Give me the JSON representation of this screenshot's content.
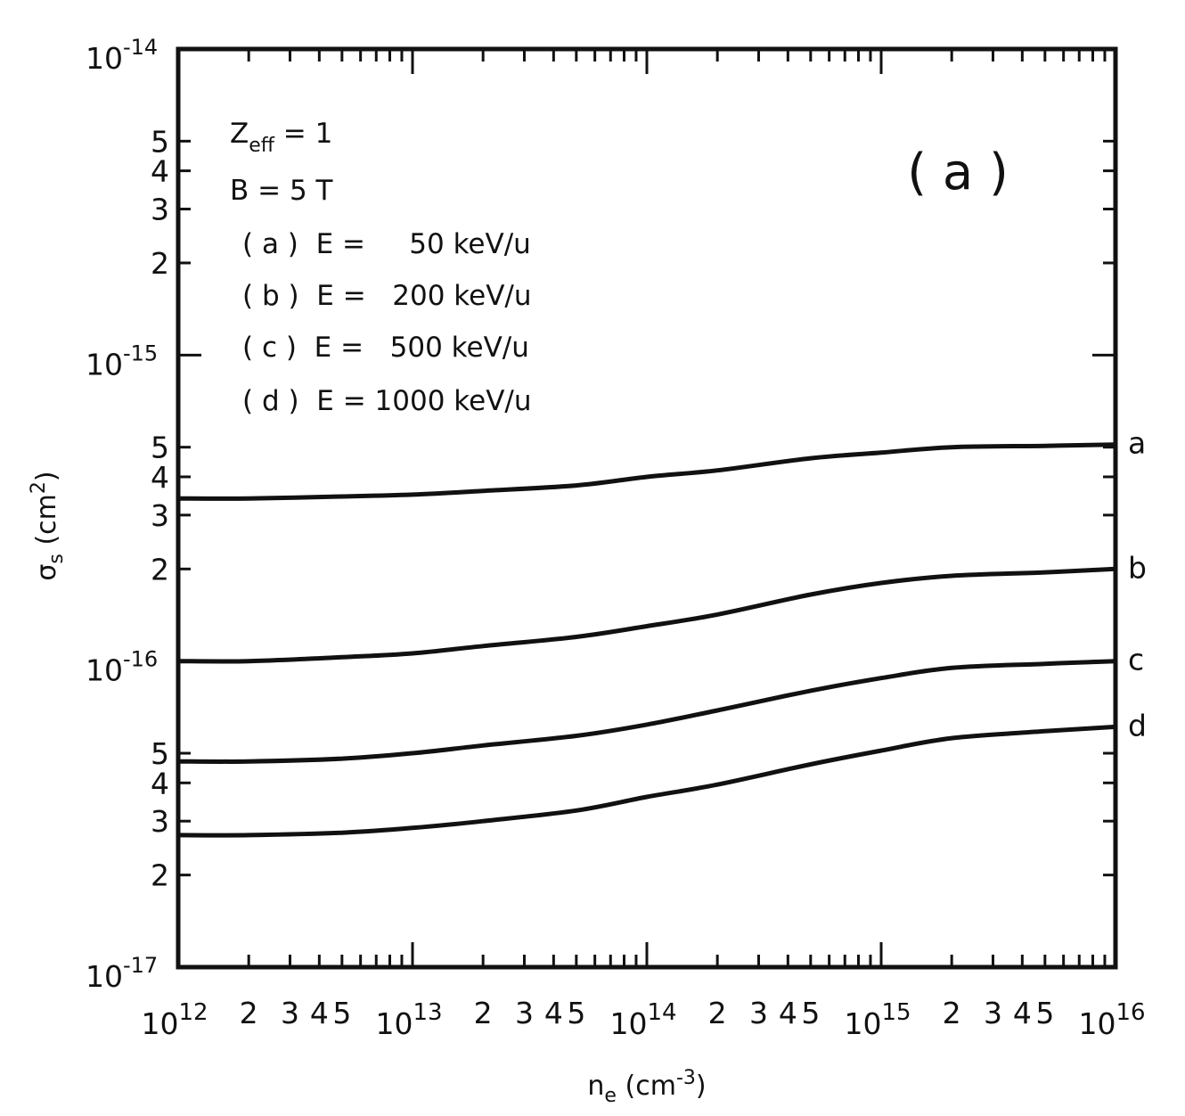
{
  "chart_data": {
    "type": "line",
    "panel_label": "( a )",
    "annotations": [
      "Z",
      "eff",
      " = 1",
      "B = 5 T",
      "( a )  E =     50 keV/u",
      "( b )  E =   200 keV/u",
      "( c )  E =   500 keV/u",
      "( d )  E = 1000 keV/u"
    ],
    "xlabel": {
      "base": "n",
      "sub": "e",
      "unit": " (cm",
      "sup": "-3",
      "close": ")"
    },
    "ylabel": {
      "base": "σ",
      "sub": "s",
      "unit": " (cm",
      "sup": "2",
      "close": ")"
    },
    "x_scale": "log",
    "y_scale": "log",
    "xlim": [
      1000000000000.0,
      1e+16
    ],
    "ylim": [
      1e-17,
      1e-14
    ],
    "x_major_ticks": [
      {
        "base": "10",
        "exp": "12"
      },
      {
        "base": "10",
        "exp": "13"
      },
      {
        "base": "10",
        "exp": "14"
      },
      {
        "base": "10",
        "exp": "15"
      },
      {
        "base": "10",
        "exp": "16"
      }
    ],
    "x_minor_labels": [
      "2",
      "3",
      "4",
      "5"
    ],
    "y_major_ticks": [
      {
        "base": "10",
        "exp": "-17"
      },
      {
        "base": "10",
        "exp": "-16"
      },
      {
        "base": "10",
        "exp": "-15"
      },
      {
        "base": "10",
        "exp": "-14"
      }
    ],
    "y_minor_labels": [
      "2",
      "3",
      "4",
      "5"
    ],
    "x": [
      1000000000000.0,
      2000000000000.0,
      5000000000000.0,
      10000000000000.0,
      20000000000000.0,
      50000000000000.0,
      100000000000000.0,
      200000000000000.0,
      500000000000000.0,
      1000000000000000.0,
      2000000000000000.0,
      5000000000000000.0,
      1e+16
    ],
    "series": [
      {
        "name": "a",
        "values": [
          3.4e-16,
          3.4e-16,
          3.45e-16,
          3.5e-16,
          3.6e-16,
          3.75e-16,
          4e-16,
          4.2e-16,
          4.6e-16,
          4.8e-16,
          5e-16,
          5.05e-16,
          5.1e-16
        ]
      },
      {
        "name": "b",
        "values": [
          1e-16,
          1e-16,
          1.03e-16,
          1.06e-16,
          1.12e-16,
          1.2e-16,
          1.3e-16,
          1.42e-16,
          1.65e-16,
          1.8e-16,
          1.9e-16,
          1.95e-16,
          2e-16
        ]
      },
      {
        "name": "c",
        "values": [
          4.7e-17,
          4.7e-17,
          4.8e-17,
          5e-17,
          5.3e-17,
          5.7e-17,
          6.2e-17,
          6.9e-17,
          8e-17,
          8.8e-17,
          9.5e-17,
          9.8e-17,
          1e-16
        ]
      },
      {
        "name": "d",
        "values": [
          2.7e-17,
          2.7e-17,
          2.75e-17,
          2.85e-17,
          3e-17,
          3.25e-17,
          3.6e-17,
          3.95e-17,
          4.6e-17,
          5.1e-17,
          5.6e-17,
          5.9e-17,
          6.1e-17
        ]
      }
    ],
    "grid": false
  }
}
